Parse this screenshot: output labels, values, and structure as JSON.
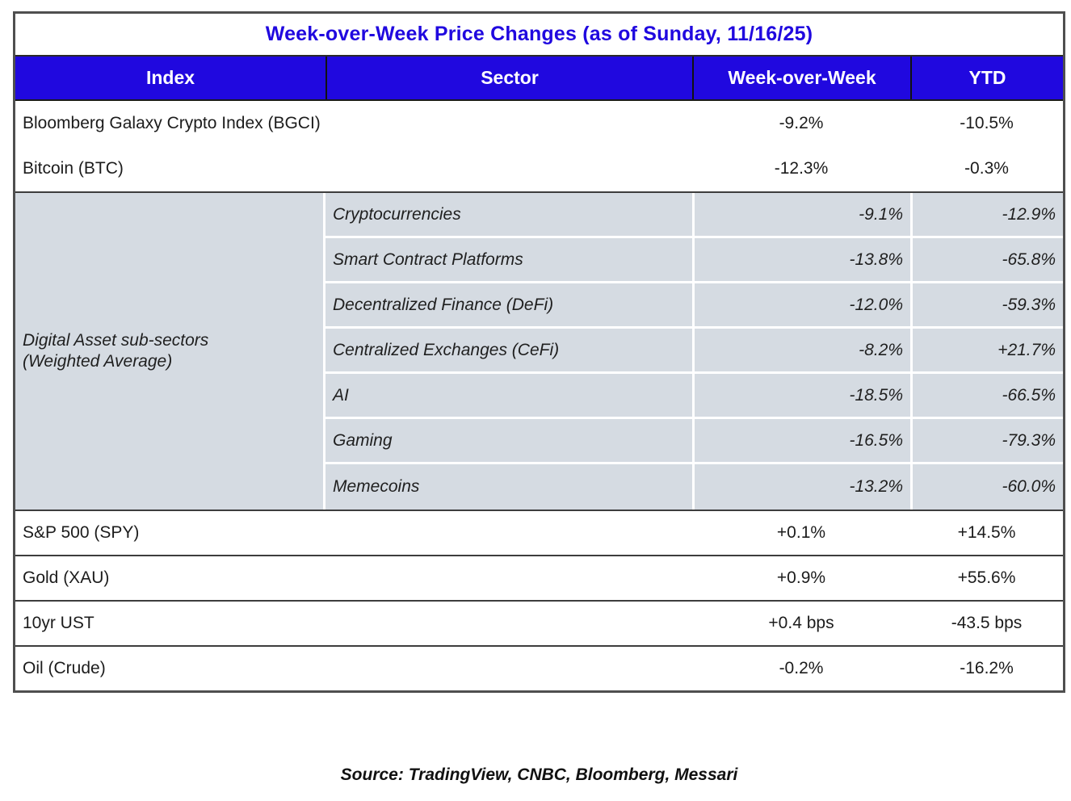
{
  "chart_data": {
    "type": "table",
    "title": "Week-over-Week Price Changes (as of Sunday, 11/16/25)",
    "columns": {
      "index": "Index",
      "sector": "Sector",
      "wow": "Week-over-Week",
      "ytd": "YTD"
    },
    "top_rows": [
      {
        "label": "Bloomberg Galaxy Crypto Index (BGCI)",
        "wow": "-9.2%",
        "ytd": "-10.5%"
      },
      {
        "label": "Bitcoin (BTC)",
        "wow": "-12.3%",
        "ytd": "-0.3%"
      }
    ],
    "subsector_group": {
      "label_line1": "Digital Asset sub-sectors",
      "label_line2": "(Weighted Average)",
      "rows": [
        {
          "sector": "Cryptocurrencies",
          "wow": "-9.1%",
          "ytd": "-12.9%"
        },
        {
          "sector": "Smart Contract Platforms",
          "wow": "-13.8%",
          "ytd": "-65.8%"
        },
        {
          "sector": "Decentralized Finance (DeFi)",
          "wow": "-12.0%",
          "ytd": "-59.3%"
        },
        {
          "sector": "Centralized Exchanges (CeFi)",
          "wow": "-8.2%",
          "ytd": "+21.7%"
        },
        {
          "sector": "AI",
          "wow": "-18.5%",
          "ytd": "-66.5%"
        },
        {
          "sector": "Gaming",
          "wow": "-16.5%",
          "ytd": "-79.3%"
        },
        {
          "sector": "Memecoins",
          "wow": "-13.2%",
          "ytd": "-60.0%"
        }
      ]
    },
    "bottom_rows": [
      {
        "label": "S&P 500 (SPY)",
        "wow": "+0.1%",
        "ytd": "+14.5%"
      },
      {
        "label": "Gold (XAU)",
        "wow": "+0.9%",
        "ytd": "+55.6%"
      },
      {
        "label": "10yr UST",
        "wow": "+0.4 bps",
        "ytd": "-43.5 bps"
      },
      {
        "label": "Oil (Crude)",
        "wow": "-0.2%",
        "ytd": "-16.2%"
      }
    ],
    "source": "Source: TradingView, CNBC, Bloomberg, Messari"
  },
  "colors": {
    "header_bg": "#2008df",
    "title_text": "#2008df",
    "subsector_bg": "#d5dbe2",
    "border_dark": "#4f4f4f",
    "header_text": "#ffffff",
    "body_text": "#1c1c1c"
  }
}
